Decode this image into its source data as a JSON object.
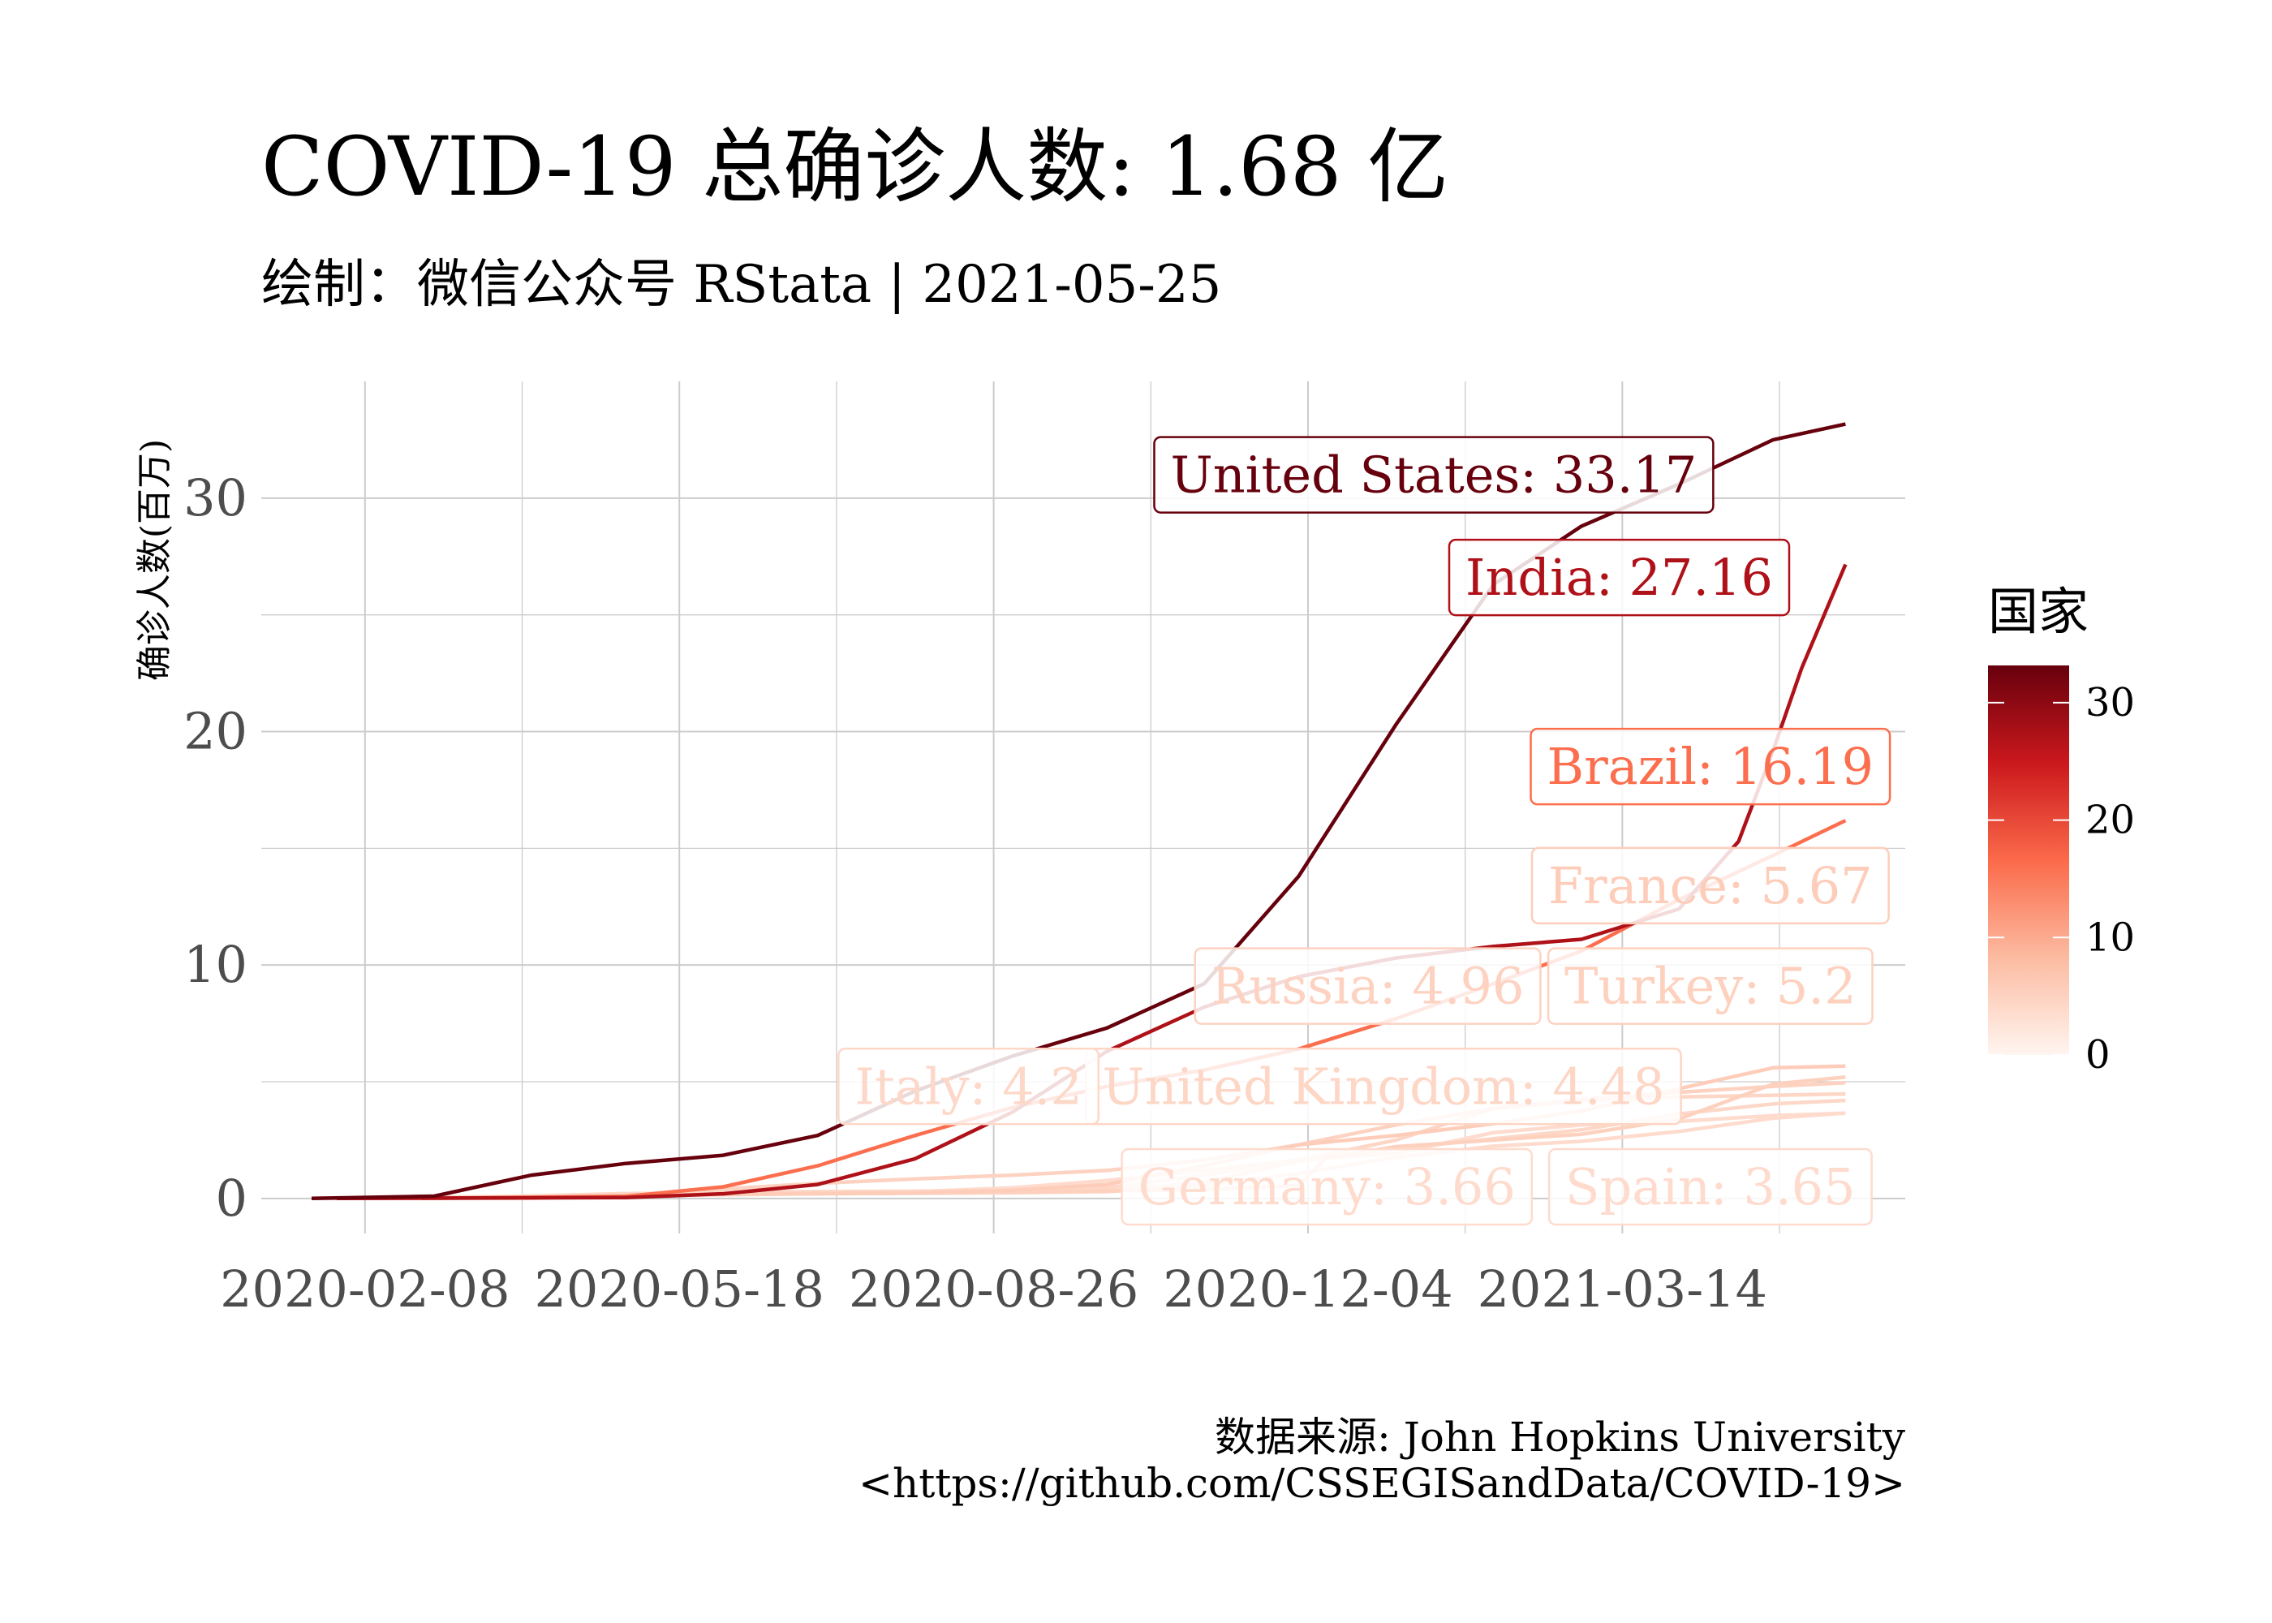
{
  "title": "COVID-19 总确诊人数: 1.68 亿",
  "subtitle": "绘制：微信公众号 RStata | 2021-05-25",
  "caption_line1": "数据来源: John Hopkins University",
  "caption_line2": "<https://github.com/CSSEGISandData/COVID-19>",
  "legend_title": "国家",
  "legend_ticks": [
    "0",
    "10",
    "20",
    "30"
  ],
  "colors": {
    "grid": "#cccccc",
    "gradient": [
      "#fff5f0",
      "#fcbba1",
      "#fb6a4a",
      "#cb181d",
      "#67000d"
    ]
  },
  "chart_data": {
    "type": "line",
    "ylabel": "确诊人数(百万)",
    "xlabel": "",
    "ylim": [
      -1.5,
      35
    ],
    "xlim": [
      "2020-01-06",
      "2021-06-12"
    ],
    "x_ticks": [
      "2020-02-08",
      "2020-05-18",
      "2020-08-26",
      "2020-12-04",
      "2021-03-14"
    ],
    "y_ticks": [
      0,
      10,
      20,
      30
    ],
    "color_scale": {
      "min": 0,
      "max": 33.17
    },
    "series": [
      {
        "name": "United States",
        "label": "United States: 33.17",
        "final": 33.17,
        "points": [
          [
            "2020-01-22",
            0
          ],
          [
            "2020-03-01",
            0.1
          ],
          [
            "2020-04-01",
            1.0
          ],
          [
            "2020-05-01",
            1.5
          ],
          [
            "2020-06-01",
            1.85
          ],
          [
            "2020-07-01",
            2.7
          ],
          [
            "2020-08-01",
            4.6
          ],
          [
            "2020-09-01",
            6.1
          ],
          [
            "2020-10-01",
            7.3
          ],
          [
            "2020-11-01",
            9.2
          ],
          [
            "2020-12-01",
            13.8
          ],
          [
            "2021-01-01",
            20.3
          ],
          [
            "2021-02-01",
            26.3
          ],
          [
            "2021-03-01",
            28.8
          ],
          [
            "2021-04-01",
            30.6
          ],
          [
            "2021-05-01",
            32.5
          ],
          [
            "2021-05-24",
            33.17
          ]
        ]
      },
      {
        "name": "India",
        "label": "India: 27.16",
        "final": 27.16,
        "points": [
          [
            "2020-01-30",
            0
          ],
          [
            "2020-05-01",
            0.04
          ],
          [
            "2020-06-01",
            0.2
          ],
          [
            "2020-07-01",
            0.6
          ],
          [
            "2020-08-01",
            1.7
          ],
          [
            "2020-09-01",
            3.7
          ],
          [
            "2020-10-01",
            6.3
          ],
          [
            "2020-11-01",
            8.2
          ],
          [
            "2020-12-01",
            9.5
          ],
          [
            "2021-01-01",
            10.3
          ],
          [
            "2021-02-01",
            10.8
          ],
          [
            "2021-03-01",
            11.1
          ],
          [
            "2021-04-01",
            12.4
          ],
          [
            "2021-04-20",
            15.3
          ],
          [
            "2021-05-01",
            19.2
          ],
          [
            "2021-05-10",
            22.7
          ],
          [
            "2021-05-24",
            27.16
          ]
        ]
      },
      {
        "name": "Brazil",
        "label": "Brazil: 16.19",
        "final": 16.19,
        "points": [
          [
            "2020-02-26",
            0
          ],
          [
            "2020-05-01",
            0.09
          ],
          [
            "2020-06-01",
            0.5
          ],
          [
            "2020-07-01",
            1.4
          ],
          [
            "2020-08-01",
            2.7
          ],
          [
            "2020-09-01",
            3.9
          ],
          [
            "2020-10-01",
            4.8
          ],
          [
            "2020-11-01",
            5.5
          ],
          [
            "2020-12-01",
            6.4
          ],
          [
            "2021-01-01",
            7.7
          ],
          [
            "2021-02-01",
            9.2
          ],
          [
            "2021-03-01",
            10.6
          ],
          [
            "2021-04-01",
            12.8
          ],
          [
            "2021-05-01",
            14.7
          ],
          [
            "2021-05-24",
            16.19
          ]
        ]
      },
      {
        "name": "France",
        "label": "France: 5.67",
        "final": 5.67,
        "points": [
          [
            "2020-01-24",
            0
          ],
          [
            "2020-04-01",
            0.06
          ],
          [
            "2020-06-01",
            0.19
          ],
          [
            "2020-08-01",
            0.23
          ],
          [
            "2020-09-01",
            0.35
          ],
          [
            "2020-10-01",
            0.6
          ],
          [
            "2020-11-01",
            1.4
          ],
          [
            "2020-12-01",
            2.3
          ],
          [
            "2021-01-01",
            2.7
          ],
          [
            "2021-02-01",
            3.2
          ],
          [
            "2021-03-01",
            3.75
          ],
          [
            "2021-04-01",
            4.7
          ],
          [
            "2021-05-01",
            5.6
          ],
          [
            "2021-05-24",
            5.67
          ]
        ]
      },
      {
        "name": "Turkey",
        "label": "Turkey: 5.2",
        "final": 5.2,
        "points": [
          [
            "2020-03-11",
            0
          ],
          [
            "2020-05-01",
            0.12
          ],
          [
            "2020-07-01",
            0.2
          ],
          [
            "2020-09-01",
            0.27
          ],
          [
            "2020-11-01",
            0.38
          ],
          [
            "2020-12-01",
            0.55
          ],
          [
            "2020-12-10",
            1.75
          ],
          [
            "2021-01-01",
            2.22
          ],
          [
            "2021-02-01",
            2.5
          ],
          [
            "2021-03-01",
            2.75
          ],
          [
            "2021-04-01",
            3.4
          ],
          [
            "2021-05-01",
            4.9
          ],
          [
            "2021-05-24",
            5.2
          ]
        ]
      },
      {
        "name": "Russia",
        "label": "Russia: 4.96",
        "final": 4.96,
        "points": [
          [
            "2020-01-31",
            0
          ],
          [
            "2020-04-01",
            0.003
          ],
          [
            "2020-05-01",
            0.11
          ],
          [
            "2020-06-01",
            0.41
          ],
          [
            "2020-07-01",
            0.65
          ],
          [
            "2020-08-01",
            0.84
          ],
          [
            "2020-09-01",
            1.0
          ],
          [
            "2020-10-01",
            1.2
          ],
          [
            "2020-11-01",
            1.65
          ],
          [
            "2020-12-01",
            2.3
          ],
          [
            "2021-01-01",
            3.15
          ],
          [
            "2021-02-01",
            3.85
          ],
          [
            "2021-03-01",
            4.25
          ],
          [
            "2021-04-01",
            4.55
          ],
          [
            "2021-05-01",
            4.8
          ],
          [
            "2021-05-24",
            4.96
          ]
        ]
      },
      {
        "name": "United Kingdom",
        "label": "United Kingdom: 4.48",
        "final": 4.48,
        "points": [
          [
            "2020-01-31",
            0
          ],
          [
            "2020-04-01",
            0.03
          ],
          [
            "2020-05-01",
            0.18
          ],
          [
            "2020-06-01",
            0.28
          ],
          [
            "2020-08-01",
            0.31
          ],
          [
            "2020-09-01",
            0.34
          ],
          [
            "2020-10-01",
            0.46
          ],
          [
            "2020-11-01",
            1.0
          ],
          [
            "2020-12-01",
            1.65
          ],
          [
            "2021-01-01",
            2.5
          ],
          [
            "2021-02-01",
            3.85
          ],
          [
            "2021-03-01",
            4.18
          ],
          [
            "2021-04-01",
            4.35
          ],
          [
            "2021-05-01",
            4.42
          ],
          [
            "2021-05-24",
            4.48
          ]
        ]
      },
      {
        "name": "Italy",
        "label": "Italy: 4.2",
        "final": 4.2,
        "points": [
          [
            "2020-01-31",
            0
          ],
          [
            "2020-03-01",
            0.001
          ],
          [
            "2020-04-01",
            0.11
          ],
          [
            "2020-05-01",
            0.21
          ],
          [
            "2020-07-01",
            0.24
          ],
          [
            "2020-09-01",
            0.27
          ],
          [
            "2020-10-01",
            0.32
          ],
          [
            "2020-11-01",
            0.68
          ],
          [
            "2020-12-01",
            1.6
          ],
          [
            "2021-01-01",
            2.13
          ],
          [
            "2021-02-01",
            2.56
          ],
          [
            "2021-03-01",
            2.94
          ],
          [
            "2021-04-01",
            3.62
          ],
          [
            "2021-05-01",
            4.05
          ],
          [
            "2021-05-24",
            4.2
          ]
        ]
      },
      {
        "name": "Germany",
        "label": "Germany: 3.66",
        "final": 3.66,
        "points": [
          [
            "2020-01-27",
            0
          ],
          [
            "2020-04-01",
            0.07
          ],
          [
            "2020-05-01",
            0.16
          ],
          [
            "2020-07-01",
            0.2
          ],
          [
            "2020-09-01",
            0.24
          ],
          [
            "2020-10-01",
            0.29
          ],
          [
            "2020-11-01",
            0.55
          ],
          [
            "2020-12-01",
            1.07
          ],
          [
            "2021-01-01",
            1.76
          ],
          [
            "2021-02-01",
            2.24
          ],
          [
            "2021-03-01",
            2.45
          ],
          [
            "2021-04-01",
            2.87
          ],
          [
            "2021-05-01",
            3.44
          ],
          [
            "2021-05-24",
            3.66
          ]
        ]
      },
      {
        "name": "Spain",
        "label": "Spain: 3.65",
        "final": 3.65,
        "points": [
          [
            "2020-02-01",
            0
          ],
          [
            "2020-04-01",
            0.1
          ],
          [
            "2020-05-01",
            0.21
          ],
          [
            "2020-07-01",
            0.25
          ],
          [
            "2020-08-01",
            0.29
          ],
          [
            "2020-09-01",
            0.46
          ],
          [
            "2020-10-01",
            0.77
          ],
          [
            "2020-11-01",
            1.2
          ],
          [
            "2020-12-01",
            1.65
          ],
          [
            "2021-01-01",
            1.93
          ],
          [
            "2021-02-01",
            2.82
          ],
          [
            "2021-03-01",
            3.15
          ],
          [
            "2021-04-01",
            3.3
          ],
          [
            "2021-05-01",
            3.55
          ],
          [
            "2021-05-24",
            3.65
          ]
        ]
      }
    ],
    "annotations": [
      {
        "text": "United States: 33.17",
        "series": "United States",
        "date": "2021-01-13",
        "value": 31.0
      },
      {
        "text": "India: 27.16",
        "series": "India",
        "date": "2021-03-13",
        "value": 26.6
      },
      {
        "text": "Brazil: 16.19",
        "series": "Brazil",
        "date": "2021-04-11",
        "value": 18.5
      },
      {
        "text": "France: 5.67",
        "series": "France",
        "date": "2021-04-11",
        "value": 13.4
      },
      {
        "text": "Turkey: 5.2",
        "series": "Turkey",
        "date": "2021-04-11",
        "value": 9.1
      },
      {
        "text": "Russia: 4.96",
        "series": "Russia",
        "date": "2020-12-23",
        "value": 9.1
      },
      {
        "text": "United Kingdom: 4.48",
        "series": "United Kingdom",
        "date": "2020-12-28",
        "value": 4.8
      },
      {
        "text": "Italy: 4.2",
        "series": "Italy",
        "date": "2020-08-18",
        "value": 4.8
      },
      {
        "text": "Germany: 3.66",
        "series": "Germany",
        "date": "2020-12-10",
        "value": 0.5
      },
      {
        "text": "Spain: 3.65",
        "series": "Spain",
        "date": "2021-04-11",
        "value": 0.5
      }
    ]
  }
}
